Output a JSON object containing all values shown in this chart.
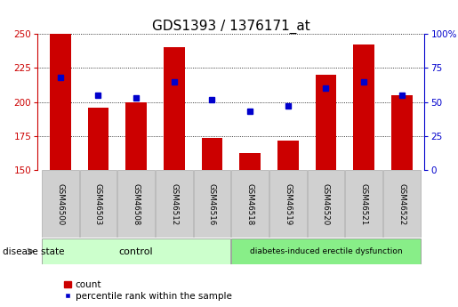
{
  "title": "GDS1393 / 1376171_at",
  "samples": [
    "GSM46500",
    "GSM46503",
    "GSM46508",
    "GSM46512",
    "GSM46516",
    "GSM46518",
    "GSM46519",
    "GSM46520",
    "GSM46521",
    "GSM46522"
  ],
  "counts": [
    250,
    196,
    200,
    240,
    174,
    163,
    172,
    220,
    242,
    205
  ],
  "percentile_ranks": [
    68,
    55,
    53,
    65,
    52,
    43,
    47,
    60,
    65,
    55
  ],
  "ylim_left": [
    150,
    250
  ],
  "ylim_right": [
    0,
    100
  ],
  "yticks_left": [
    150,
    175,
    200,
    225,
    250
  ],
  "yticks_right": [
    0,
    25,
    50,
    75,
    100
  ],
  "bar_color": "#cc0000",
  "dot_color": "#0000cc",
  "control_color": "#ccffcc",
  "diabetes_color": "#88ee88",
  "label_bg_color": "#d0d0d0",
  "title_fontsize": 11,
  "tick_fontsize": 7.5,
  "legend_fontsize": 7.5,
  "bar_width": 0.55,
  "n_control": 5,
  "n_total": 10
}
